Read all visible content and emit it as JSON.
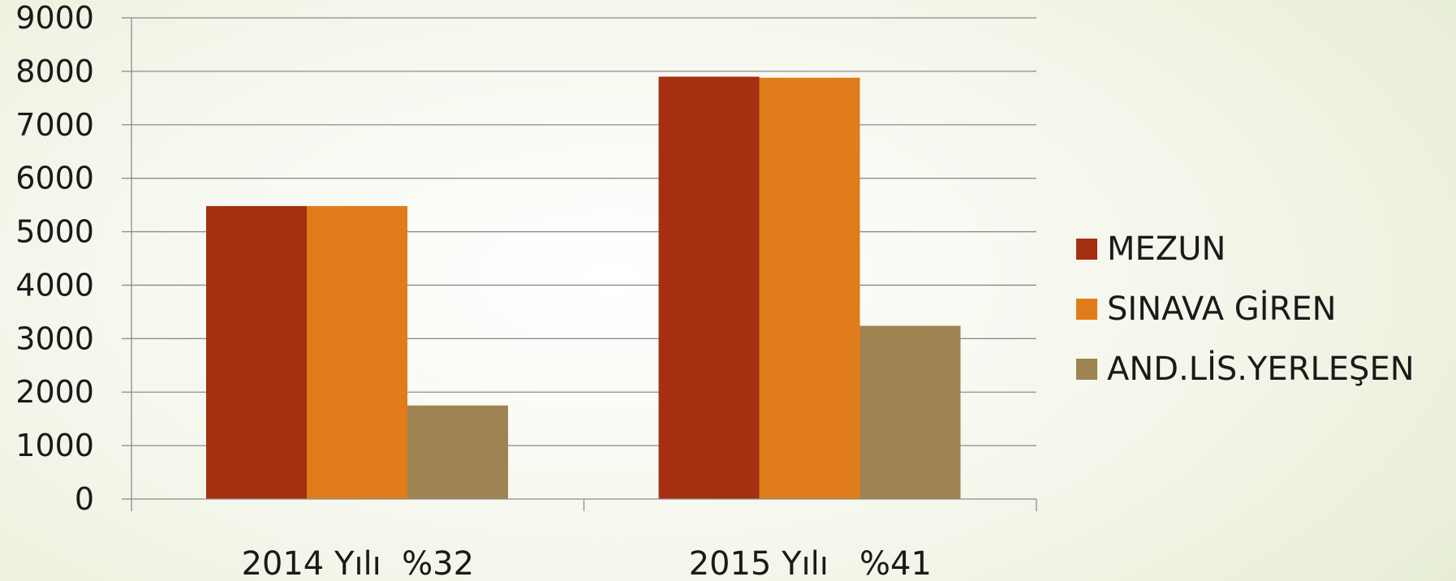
{
  "chart_data": {
    "type": "bar",
    "title": "",
    "xlabel": "",
    "ylabel": "",
    "categories": [
      "2014 Yılı  %32",
      "2015 Yılı   %41"
    ],
    "series": [
      {
        "name": "MEZUN",
        "values": [
          5480,
          7900
        ],
        "color": "#a52f11"
      },
      {
        "name": "SINAVA GİREN",
        "values": [
          5480,
          7880
        ],
        "color": "#e07c1a"
      },
      {
        "name": "AND.LİS.YERLEŞEN",
        "values": [
          1750,
          3240
        ],
        "color": "#a08352"
      }
    ],
    "ylim": [
      0,
      9000
    ],
    "yticks": [
      0,
      1000,
      2000,
      3000,
      4000,
      5000,
      6000,
      7000,
      8000,
      9000
    ],
    "grid": true,
    "legend_position": "right"
  }
}
